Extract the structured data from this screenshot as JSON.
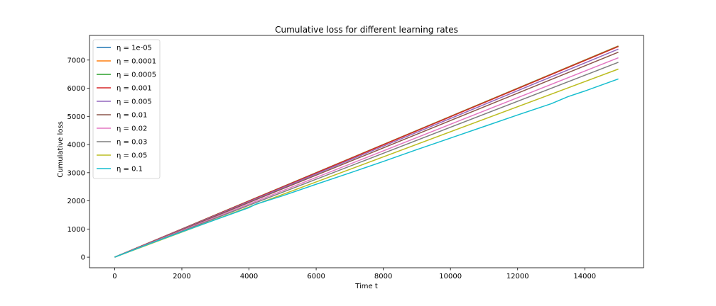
{
  "chart_data": {
    "type": "line",
    "title": "Cumulative loss for different learning rates",
    "xlabel": "Time t",
    "ylabel": "Cumulative loss",
    "xlim": [
      -750,
      15750
    ],
    "ylim": [
      -375,
      7875
    ],
    "xticks": [
      0,
      2000,
      4000,
      6000,
      8000,
      10000,
      12000,
      14000
    ],
    "yticks": [
      0,
      1000,
      2000,
      3000,
      4000,
      5000,
      6000,
      7000
    ],
    "grid": false,
    "legend_position": "upper left",
    "series": [
      {
        "name": "η = 1e-05",
        "color": "#1f77b4",
        "x": [
          0,
          15000
        ],
        "y": [
          0,
          7500
        ]
      },
      {
        "name": "η = 0.0001",
        "color": "#ff7f0e",
        "x": [
          0,
          15000
        ],
        "y": [
          0,
          7500
        ]
      },
      {
        "name": "η = 0.0005",
        "color": "#2ca02c",
        "x": [
          0,
          15000
        ],
        "y": [
          0,
          7490
        ]
      },
      {
        "name": "η = 0.001",
        "color": "#d62728",
        "x": [
          0,
          15000
        ],
        "y": [
          0,
          7480
        ]
      },
      {
        "name": "η = 0.005",
        "color": "#9467bd",
        "x": [
          0,
          15000
        ],
        "y": [
          0,
          7390
        ]
      },
      {
        "name": "η = 0.01",
        "color": "#8c564b",
        "x": [
          0,
          15000
        ],
        "y": [
          0,
          7280
        ]
      },
      {
        "name": "η = 0.02",
        "color": "#e377c2",
        "x": [
          0,
          15000
        ],
        "y": [
          0,
          7080
        ]
      },
      {
        "name": "η = 0.03",
        "color": "#7f7f7f",
        "x": [
          0,
          15000
        ],
        "y": [
          0,
          6920
        ]
      },
      {
        "name": "η = 0.05",
        "color": "#bcbd22",
        "x": [
          0,
          15000
        ],
        "y": [
          0,
          6680
        ]
      },
      {
        "name": "η = 0.1",
        "color": "#17becf",
        "x": [
          0,
          1000,
          2000,
          3000,
          4000,
          4200,
          5000,
          6000,
          7000,
          8000,
          9000,
          10000,
          11000,
          12000,
          13000,
          13500,
          14000,
          15000
        ],
        "y": [
          0,
          460,
          900,
          1330,
          1760,
          1880,
          2180,
          2590,
          2990,
          3400,
          3820,
          4230,
          4640,
          5050,
          5450,
          5700,
          5900,
          6330
        ]
      }
    ]
  }
}
